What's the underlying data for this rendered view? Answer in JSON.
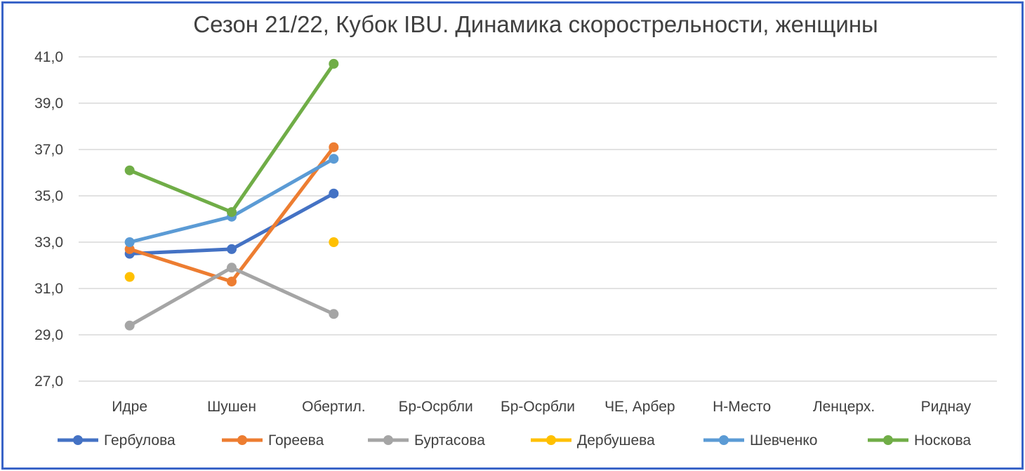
{
  "chart_data": {
    "type": "line",
    "title": "Сезон 21/22, Кубок IBU. Динамика скорострельности,  женщины",
    "xlabel": "",
    "ylabel": "",
    "categories": [
      "Идре",
      "Шушен",
      "Обертил.",
      "Бр-Осрбли",
      "Бр-Осрбли",
      "ЧЕ, Арбер",
      "Н-Место",
      "Ленцерх.",
      "Риднау"
    ],
    "ylim": [
      27.0,
      41.0
    ],
    "yticks": [
      "27,0",
      "29,0",
      "31,0",
      "33,0",
      "35,0",
      "37,0",
      "39,0",
      "41,0"
    ],
    "grid": true,
    "legend_position": "bottom",
    "series": [
      {
        "name": "Гербулова",
        "color": "#4472c4",
        "values": [
          32.5,
          32.7,
          35.1,
          null,
          null,
          null,
          null,
          null,
          null
        ]
      },
      {
        "name": "Гореева",
        "color": "#ed7d31",
        "values": [
          32.7,
          31.3,
          37.1,
          null,
          null,
          null,
          null,
          null,
          null
        ]
      },
      {
        "name": "Буртасова",
        "color": "#a5a5a5",
        "values": [
          29.4,
          31.9,
          29.9,
          null,
          null,
          null,
          null,
          null,
          null
        ]
      },
      {
        "name": "Дербушева",
        "color": "#ffc000",
        "values": [
          31.5,
          null,
          33.0,
          null,
          null,
          null,
          null,
          null,
          null
        ]
      },
      {
        "name": "Шевченко",
        "color": "#5b9bd5",
        "values": [
          33.0,
          34.1,
          36.6,
          null,
          null,
          null,
          null,
          null,
          null
        ]
      },
      {
        "name": "Носкова",
        "color": "#70ad47",
        "values": [
          36.1,
          34.3,
          40.7,
          null,
          null,
          null,
          null,
          null,
          null
        ]
      }
    ]
  }
}
